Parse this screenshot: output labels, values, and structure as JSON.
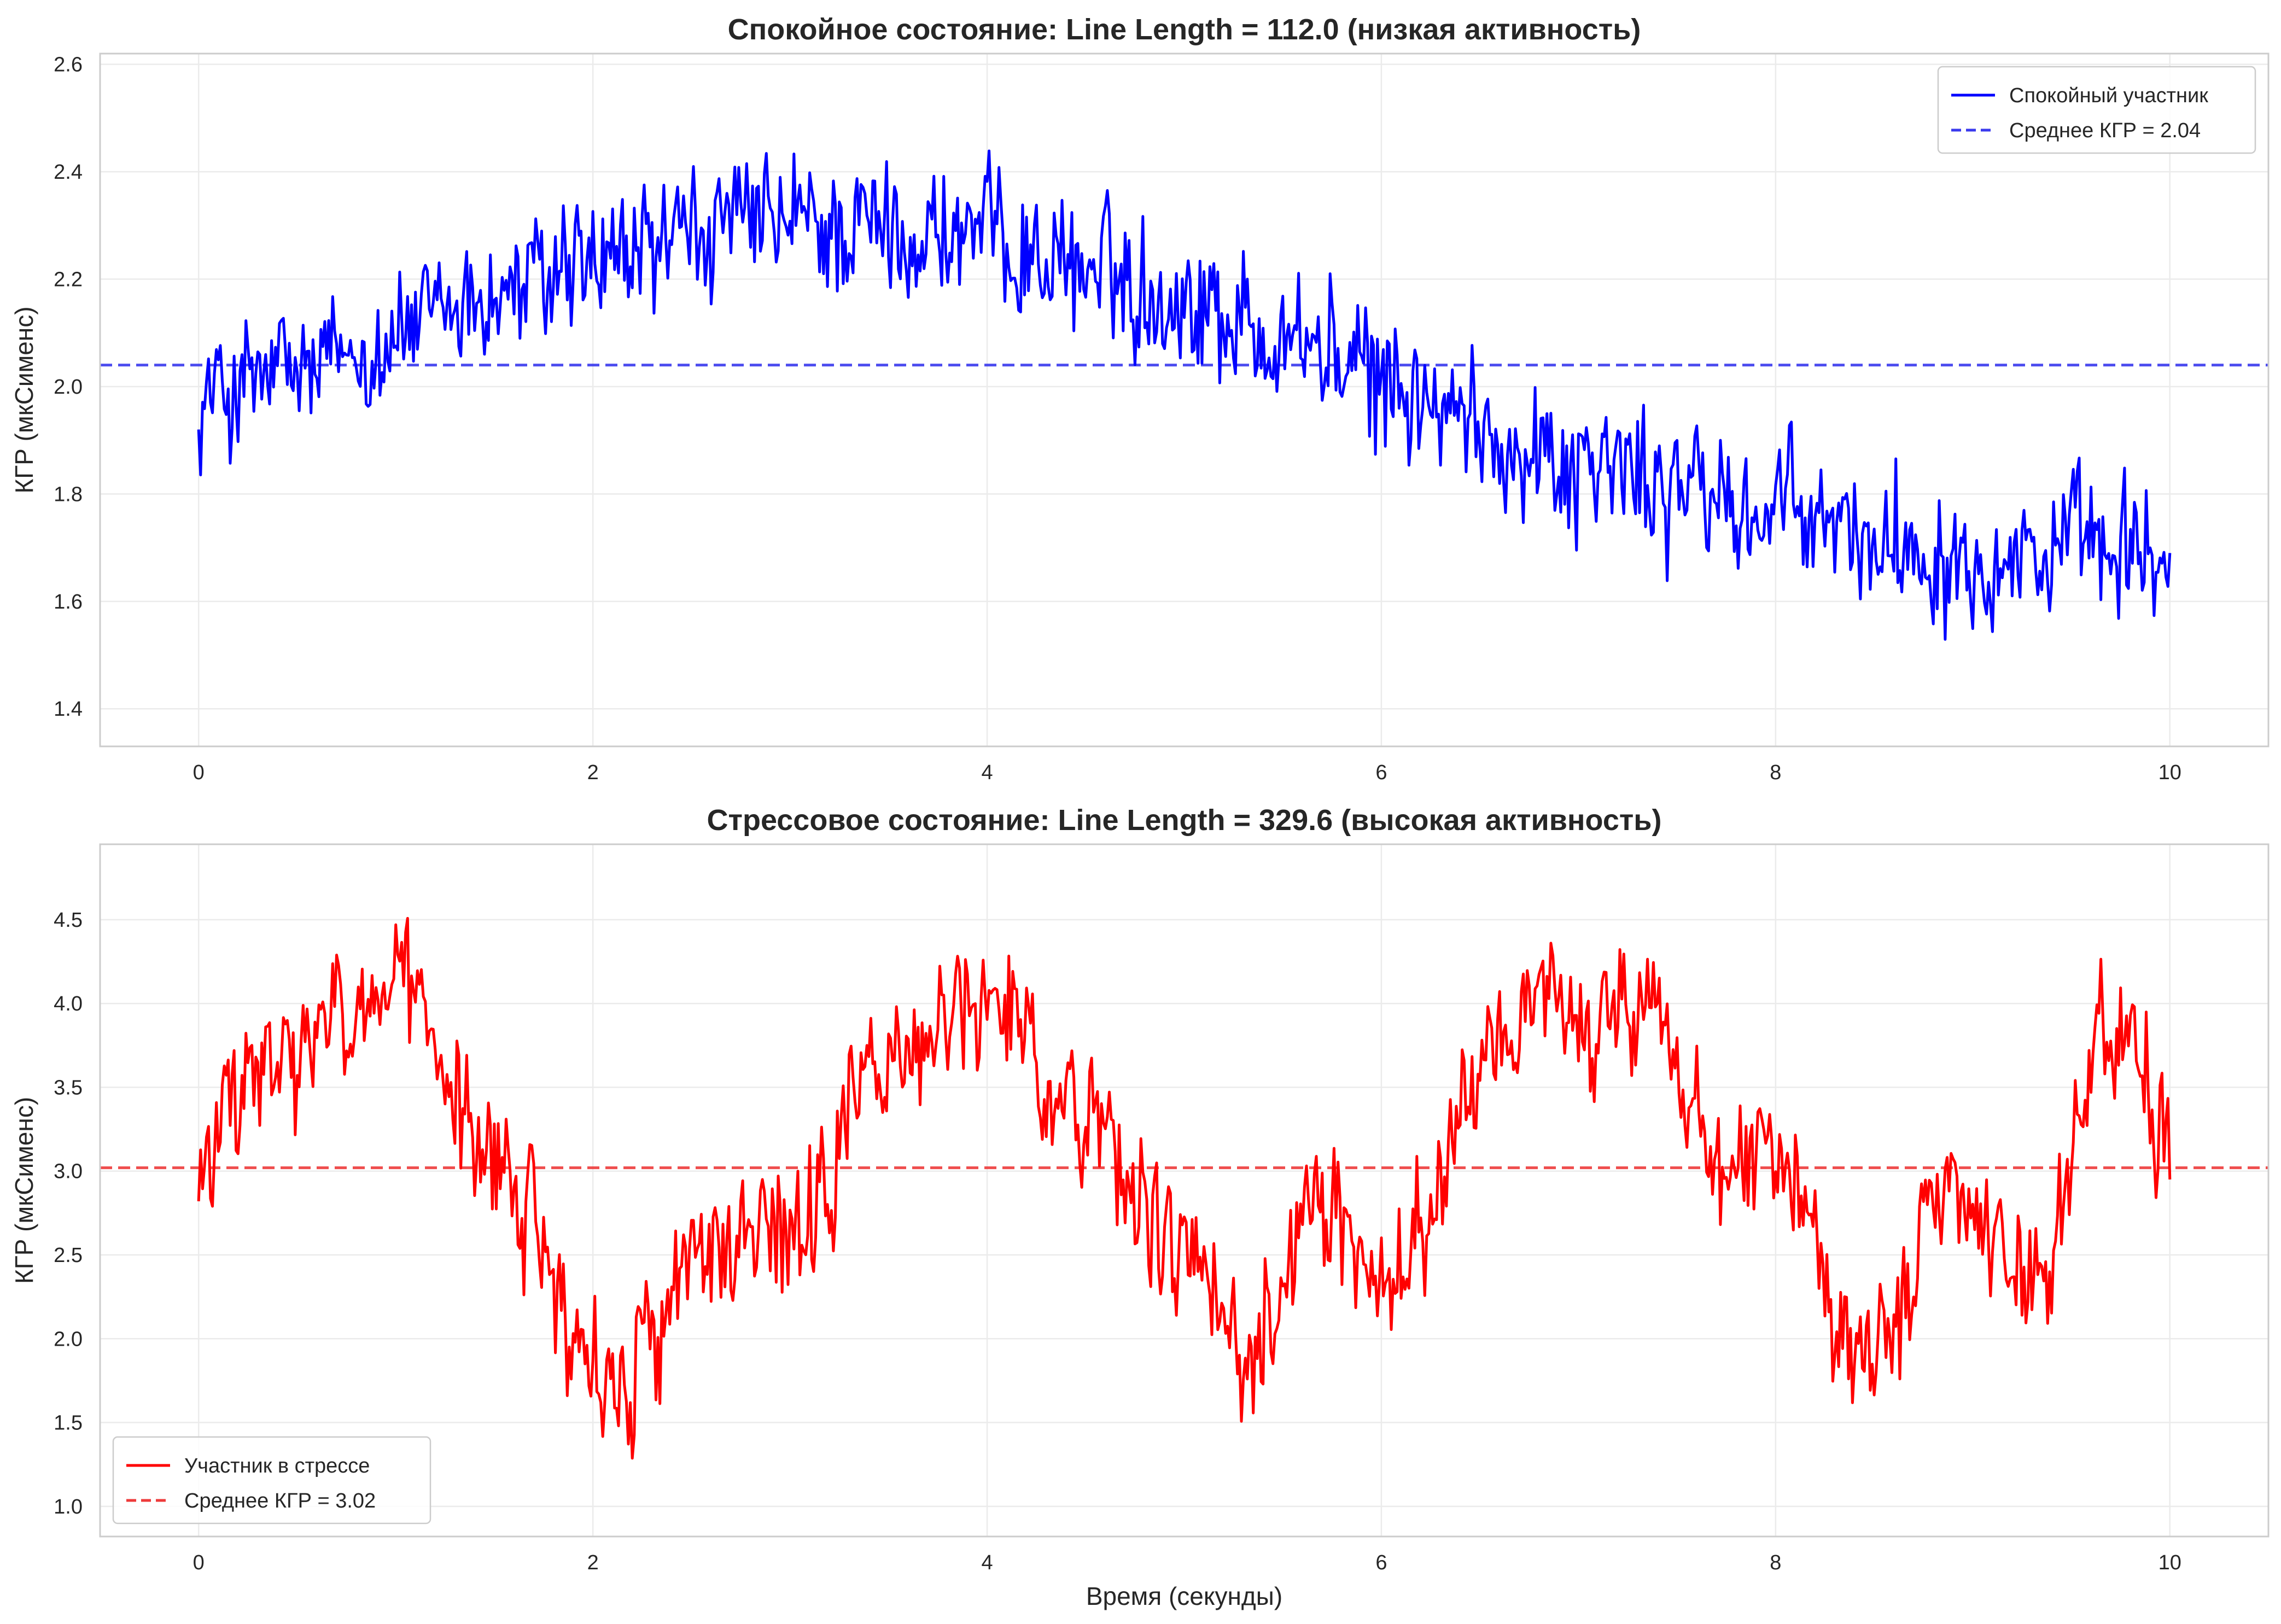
{
  "colors": {
    "calm_line": "#0000ff",
    "calm_mean": "#3a3aee",
    "stress_line": "#ff0000",
    "stress_mean": "#ee3a3a",
    "grid": "#ebebeb",
    "axes_frame": "#cccccc",
    "text": "#262626"
  },
  "chart_data": [
    {
      "type": "line",
      "title": "Спокойное состояние: Line Length = 112.0 (низкая активность)",
      "xlabel": "",
      "ylabel": "КГР (мкСименс)",
      "xlim": [
        -0.5,
        10.5
      ],
      "ylim": [
        1.33,
        2.62
      ],
      "xticks": [
        0,
        2,
        4,
        6,
        8,
        10
      ],
      "xtick_labels": [
        "0",
        "2",
        "4",
        "6",
        "8",
        "10"
      ],
      "yticks": [
        1.4,
        1.6,
        1.8,
        2.0,
        2.2,
        2.4,
        2.6
      ],
      "ytick_labels": [
        "1.4",
        "1.6",
        "1.8",
        "2.0",
        "2.2",
        "2.4",
        "2.6"
      ],
      "grid": true,
      "legend_position": "top-right",
      "series": [
        {
          "name": "Спокойный участник",
          "color": "#0000ff",
          "style": "solid",
          "sample_rate_hz": 100,
          "x_start": 0,
          "x_end": 10,
          "envelope_x": [
            0,
            0.5,
            1,
            1.5,
            2,
            2.5,
            3,
            3.5,
            4,
            4.5,
            5,
            5.5,
            6,
            6.5,
            7,
            7.5,
            8,
            8.5,
            9,
            9.5,
            10
          ],
          "envelope_y": [
            1.98,
            2.02,
            2.1,
            2.17,
            2.22,
            2.28,
            2.3,
            2.29,
            2.28,
            2.22,
            2.17,
            2.1,
            2.01,
            1.92,
            1.86,
            1.81,
            1.76,
            1.72,
            1.7,
            1.69,
            1.68
          ],
          "noise_amplitude": 0.1,
          "first_value": 1.92,
          "last_value": 1.69
        },
        {
          "name": "Среднее КГР = 2.04",
          "color": "#3a3aee",
          "style": "dashed",
          "value": 2.04
        }
      ]
    },
    {
      "type": "line",
      "title": "Стрессовое состояние: Line Length = 329.6 (высокая активность)",
      "xlabel": "Время (секунды)",
      "ylabel": "КГР (мкСименс)",
      "xlim": [
        -0.5,
        10.5
      ],
      "ylim": [
        0.82,
        4.95
      ],
      "xticks": [
        0,
        2,
        4,
        6,
        8,
        10
      ],
      "xtick_labels": [
        "0",
        "2",
        "4",
        "6",
        "8",
        "10"
      ],
      "yticks": [
        1.0,
        1.5,
        2.0,
        2.5,
        3.0,
        3.5,
        4.0,
        4.5
      ],
      "ytick_labels": [
        "1.0",
        "1.5",
        "2.0",
        "2.5",
        "3.0",
        "3.5",
        "4.0",
        "4.5"
      ],
      "grid": true,
      "legend_position": "bottom-left",
      "series": [
        {
          "name": "Участник в стрессе",
          "color": "#ff0000",
          "style": "solid",
          "sample_rate_hz": 100,
          "x_start": 0,
          "x_end": 10,
          "envelope_x": [
            0,
            0.3,
            1.0,
            1.5,
            2.1,
            2.6,
            3.0,
            3.5,
            4.0,
            4.5,
            5.0,
            5.3,
            5.7,
            6.1,
            6.5,
            7.0,
            7.3,
            7.7,
            8.0,
            8.4,
            8.9,
            9.3,
            9.7,
            10.0
          ],
          "envelope_y": [
            3.05,
            3.55,
            4.05,
            3.0,
            1.75,
            2.55,
            2.55,
            3.65,
            4.05,
            3.35,
            2.45,
            2.0,
            2.75,
            2.35,
            3.7,
            3.95,
            4.05,
            3.05,
            3.25,
            1.85,
            2.75,
            2.35,
            3.9,
            3.2
          ],
          "noise_amplitude": 0.32,
          "first_value": 2.82,
          "last_value": 2.95
        },
        {
          "name": "Среднее КГР = 3.02",
          "color": "#ee3a3a",
          "style": "dashed",
          "value": 3.02
        }
      ]
    }
  ]
}
